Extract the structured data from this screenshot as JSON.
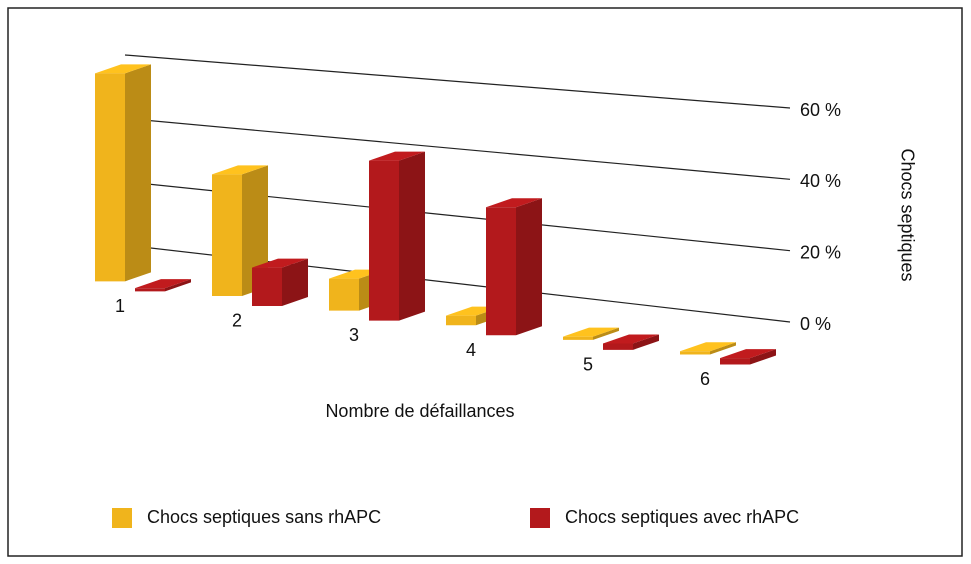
{
  "chart_data": {
    "type": "bar3d",
    "categories": [
      "1",
      "2",
      "3",
      "4",
      "5",
      "6"
    ],
    "series": [
      {
        "name": "Chocs septiques sans rhAPC",
        "color": "#f0b41c",
        "values": [
          65,
          38,
          10,
          3,
          1,
          1
        ]
      },
      {
        "name": "Chocs septiques avec rhAPC",
        "color": "#b3191c",
        "values": [
          1,
          12,
          50,
          40,
          2,
          2
        ]
      }
    ],
    "ylim": [
      0,
      60
    ],
    "yticks": [
      {
        "value": 0,
        "label": "0 %"
      },
      {
        "value": 20,
        "label": "20 %"
      },
      {
        "value": 40,
        "label": "40 %"
      },
      {
        "value": 60,
        "label": "60 %"
      }
    ],
    "ylabel": "Chocs septiques",
    "xlabel": "Nombre de défaillances",
    "grid": true
  }
}
